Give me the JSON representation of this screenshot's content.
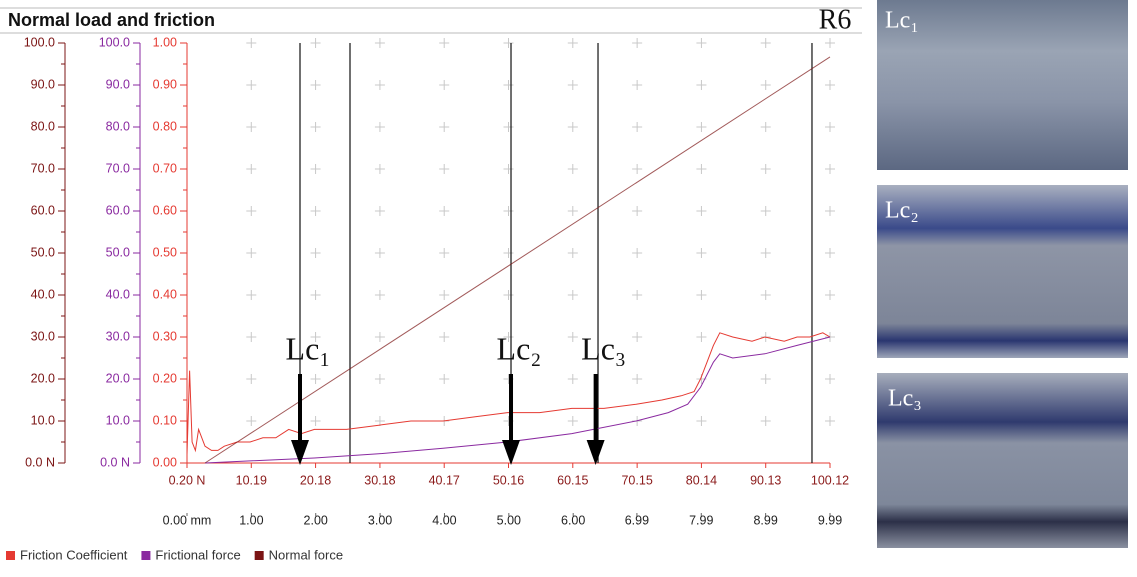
{
  "chart_data": {
    "type": "line",
    "title": "Normal load and friction",
    "sample_label": "R6",
    "series": [
      {
        "name": "Friction Coefficient",
        "color": "#e53a32",
        "axis": "y3",
        "x": [
          0.2,
          0.6,
          1.0,
          1.5,
          2.0,
          3,
          4,
          5,
          6,
          8,
          10,
          12,
          14,
          16,
          18,
          20,
          25,
          30,
          35,
          40,
          45,
          50,
          55,
          60,
          65,
          70,
          74,
          77,
          79,
          80,
          81,
          82,
          83,
          85,
          88,
          90,
          93,
          95,
          97,
          99,
          100.12
        ],
        "values": [
          0.02,
          0.22,
          0.05,
          0.03,
          0.08,
          0.04,
          0.03,
          0.03,
          0.04,
          0.05,
          0.05,
          0.06,
          0.06,
          0.08,
          0.07,
          0.08,
          0.08,
          0.09,
          0.1,
          0.1,
          0.11,
          0.12,
          0.12,
          0.13,
          0.13,
          0.14,
          0.15,
          0.16,
          0.17,
          0.2,
          0.24,
          0.28,
          0.31,
          0.3,
          0.29,
          0.3,
          0.29,
          0.3,
          0.3,
          0.31,
          0.3
        ]
      },
      {
        "name": "Frictional force",
        "color": "#8a2aa0",
        "axis": "y2",
        "x": [
          3,
          10,
          20,
          30,
          40,
          50,
          60,
          70,
          75,
          78,
          80,
          82,
          83,
          85,
          90,
          95,
          100.12
        ],
        "values": [
          0,
          0.5,
          1.2,
          2.2,
          3.5,
          5,
          7,
          10,
          12,
          14,
          18,
          24,
          26,
          25,
          26,
          28,
          30
        ]
      },
      {
        "name": "Normal force",
        "color": "#7b1414",
        "axis": "y",
        "x": [
          3,
          100.12
        ],
        "values": [
          0,
          96.7
        ]
      }
    ],
    "xlim": [
      0.2,
      100.12
    ],
    "xticks": [
      {
        "value": 0.2,
        "label": "0.20 N"
      },
      10.19,
      20.18,
      30.18,
      40.17,
      50.16,
      60.15,
      70.15,
      80.14,
      90.13,
      100.12
    ],
    "x2lim": [
      0,
      9.99
    ],
    "x2ticks": [
      {
        "value": 0,
        "label": "0.00 mm"
      },
      {
        "value": 1,
        "label": "1.00"
      },
      {
        "value": 2,
        "label": "2.00"
      },
      {
        "value": 3,
        "label": "3.00"
      },
      {
        "value": 4,
        "label": "4.00"
      },
      {
        "value": 5,
        "label": "5.00"
      },
      {
        "value": 6,
        "label": "6.00"
      },
      6.99,
      7.99,
      8.99,
      9.99
    ],
    "ylim": [
      0,
      100
    ],
    "yticks": [
      {
        "value": 0,
        "label": "0.0 N"
      },
      {
        "value": 10,
        "label": "10.0"
      },
      {
        "value": 20,
        "label": "20.0"
      },
      {
        "value": 30,
        "label": "30.0"
      },
      {
        "value": 40,
        "label": "40.0"
      },
      {
        "value": 50,
        "label": "50.0"
      },
      {
        "value": 60,
        "label": "60.0"
      },
      {
        "value": 70,
        "label": "70.0"
      },
      {
        "value": 80,
        "label": "80.0"
      },
      {
        "value": 90,
        "label": "90.0"
      },
      {
        "value": 100,
        "label": "100.0"
      }
    ],
    "y2lim": [
      0,
      100
    ],
    "y2ticks": [
      {
        "value": 0,
        "label": "0.0 N"
      },
      {
        "value": 10,
        "label": "10.0"
      },
      {
        "value": 20,
        "label": "20.0"
      },
      {
        "value": 30,
        "label": "30.0"
      },
      {
        "value": 40,
        "label": "40.0"
      },
      {
        "value": 50,
        "label": "50.0"
      },
      {
        "value": 60,
        "label": "60.0"
      },
      {
        "value": 70,
        "label": "70.0"
      },
      {
        "value": 80,
        "label": "80.0"
      },
      {
        "value": 90,
        "label": "90.0"
      },
      {
        "value": 100,
        "label": "100.0"
      }
    ],
    "y3lim": [
      0,
      1
    ],
    "y3ticks": [
      {
        "value": 0,
        "label": "0.00"
      },
      {
        "value": 0.1,
        "label": "0.10"
      },
      {
        "value": 0.2,
        "label": "0.20"
      },
      {
        "value": 0.3,
        "label": "0.30"
      },
      {
        "value": 0.4,
        "label": "0.40"
      },
      {
        "value": 0.5,
        "label": "0.50"
      },
      {
        "value": 0.6,
        "label": "0.60"
      },
      {
        "value": 0.7,
        "label": "0.70"
      },
      {
        "value": 0.8,
        "label": "0.80"
      },
      {
        "value": 0.9,
        "label": "0.90"
      },
      {
        "value": 1,
        "label": "1.00"
      }
    ],
    "grid": "crosses",
    "vertical_lines": [
      17.76,
      25.53,
      50.55,
      64.07,
      97.32
    ],
    "critical_loads": [
      {
        "label": "Lc₁",
        "x": 17.76
      },
      {
        "label": "Lc₂",
        "x": 50.55
      },
      {
        "label": "Lc₃",
        "x": 63.7
      }
    ]
  },
  "micrographs": [
    {
      "label": "Lc₁"
    },
    {
      "label": "Lc₂"
    },
    {
      "label": "Lc₃"
    }
  ]
}
